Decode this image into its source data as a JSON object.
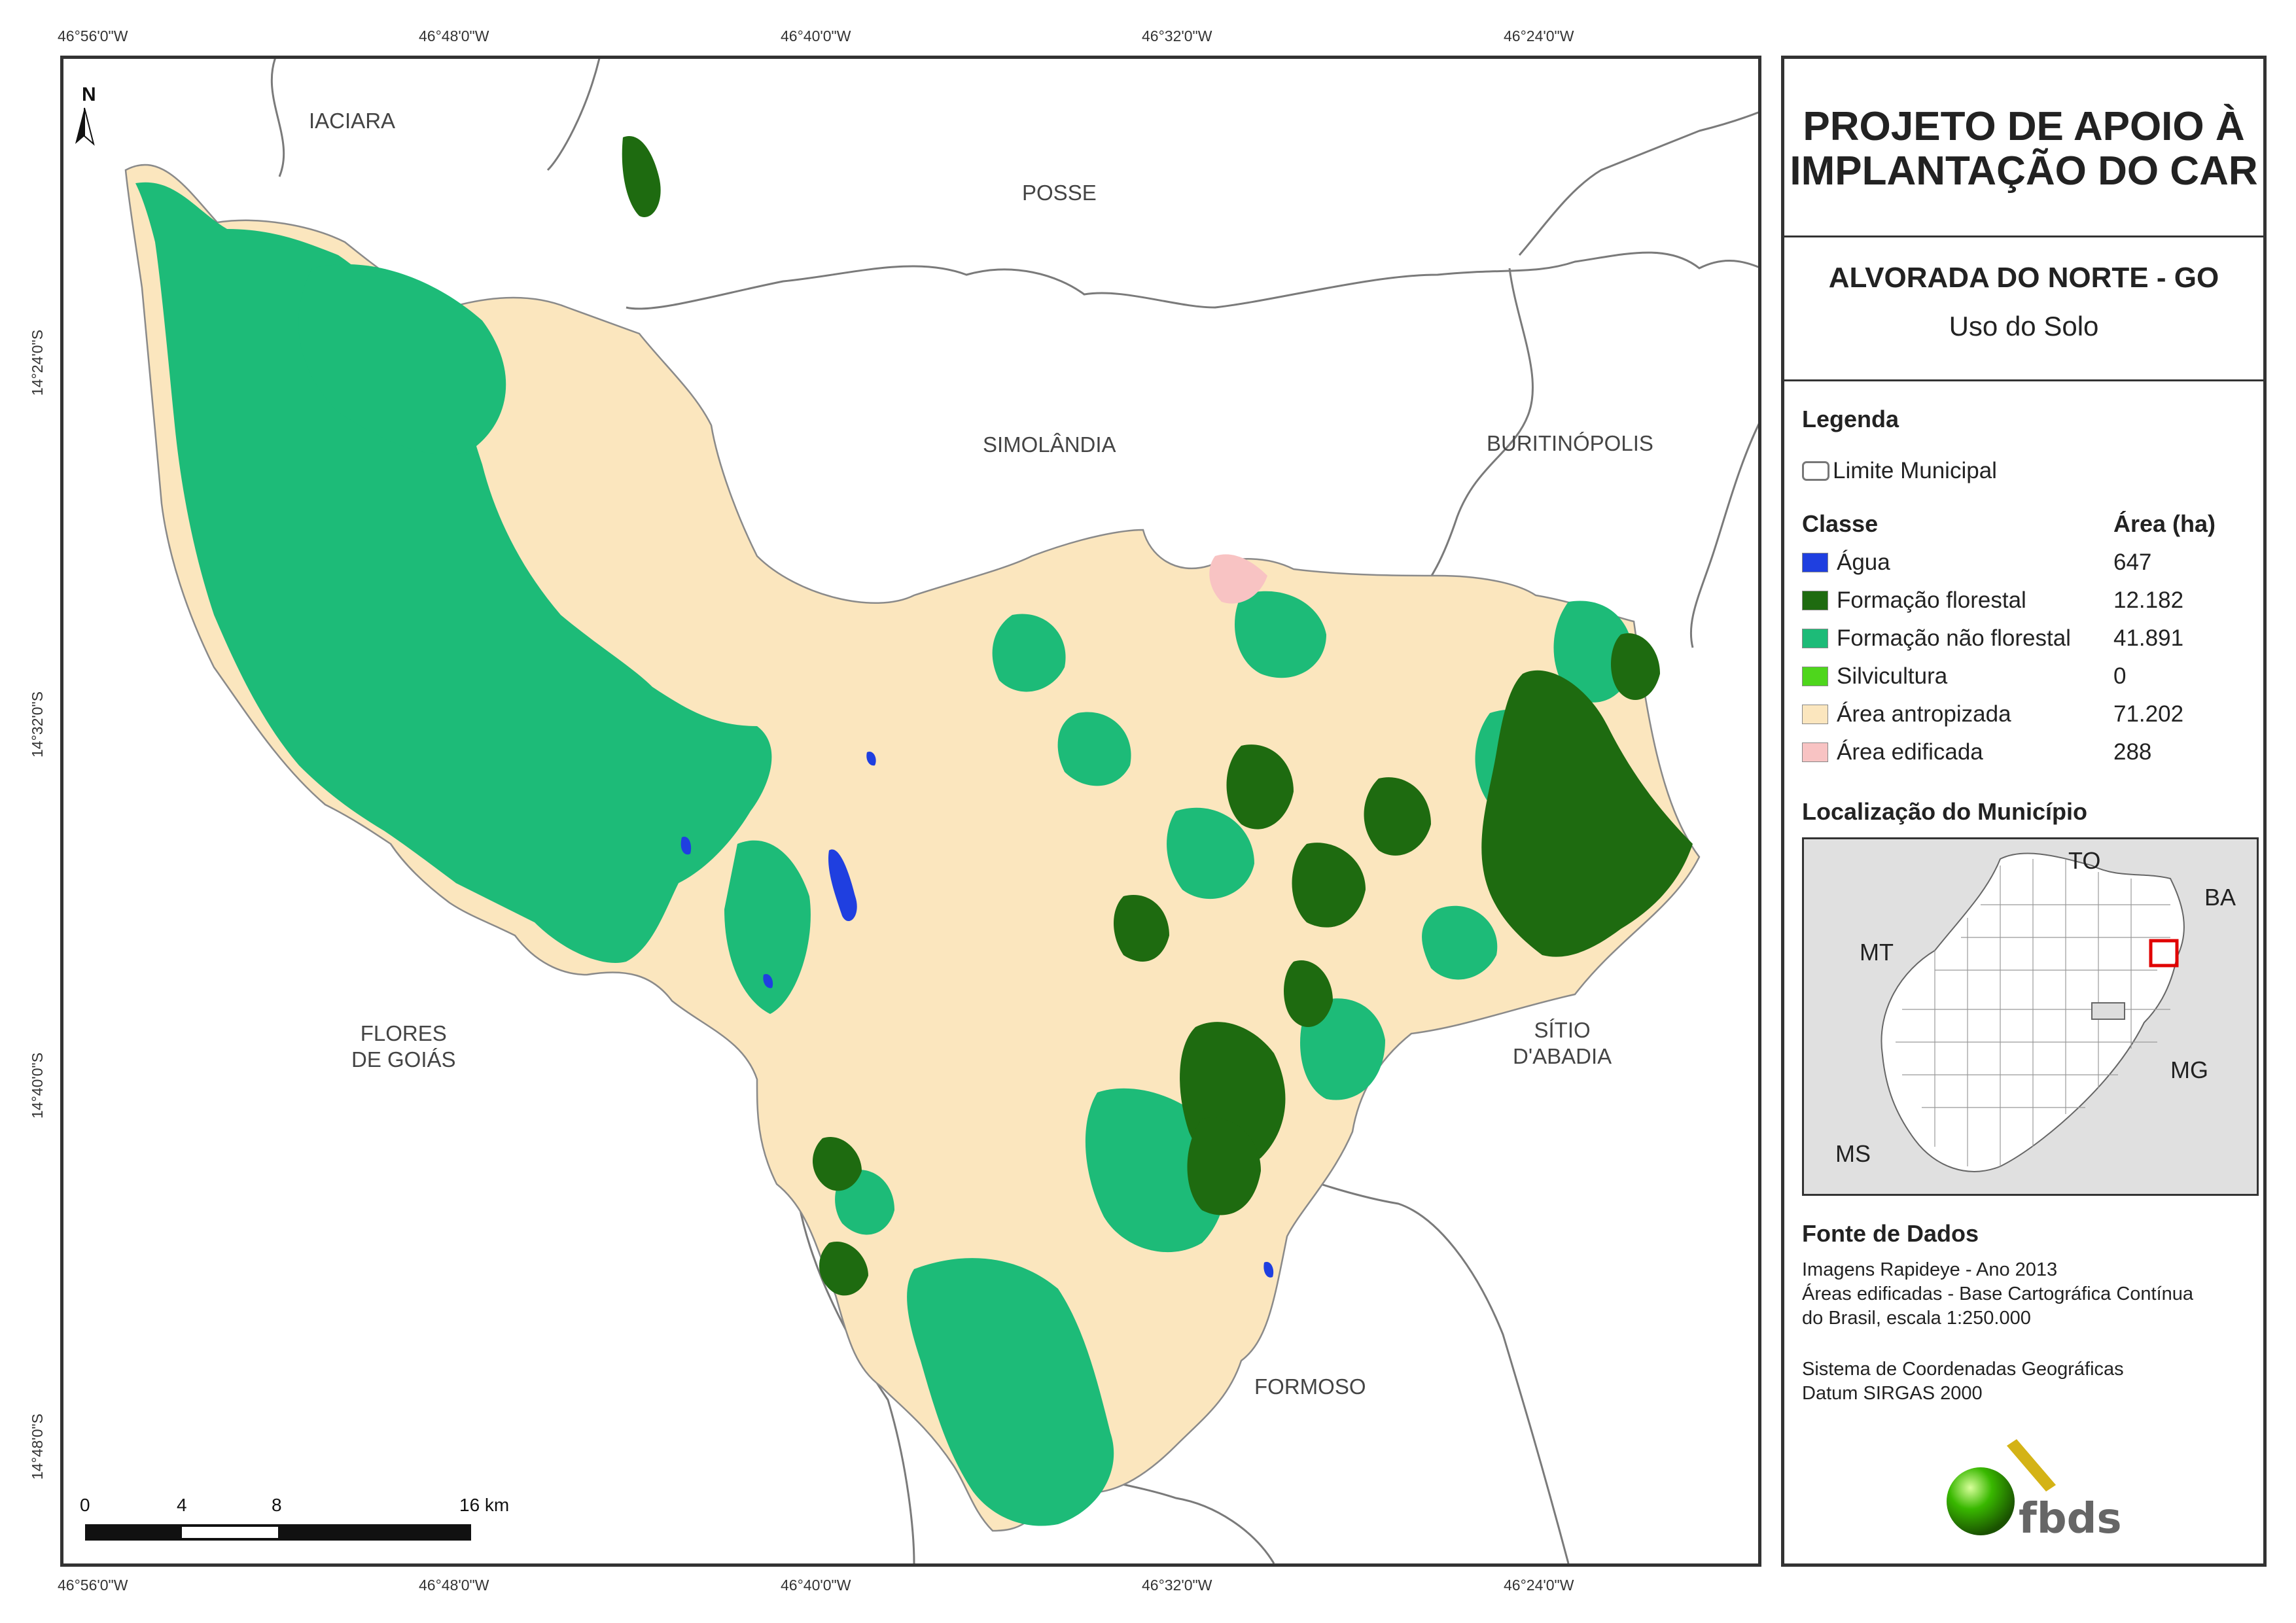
{
  "map": {
    "top_ticks": [
      "46°56'0\"W",
      "46°48'0\"W",
      "46°40'0\"W",
      "46°32'0\"W",
      "46°24'0\"W"
    ],
    "bottom_ticks": [
      "46°56'0\"W",
      "46°48'0\"W",
      "46°40'0\"W",
      "46°32'0\"W",
      "46°24'0\"W"
    ],
    "left_ticks": [
      "14°24'0\"S",
      "14°32'0\"S",
      "14°40'0\"S",
      "14°48'0\"S"
    ],
    "north": "N",
    "municipalities": {
      "iaciara": "IACIARA",
      "posse": "POSSE",
      "simolandia": "SIMOLÂNDIA",
      "buritinopolis": "BURITINÓPOLIS",
      "flores_l1": "FLORES",
      "flores_l2": "DE GOIÁS",
      "sitio_l1": "SÍTIO",
      "sitio_l2": "D'ABADIA",
      "formoso": "FORMOSO"
    },
    "scale": {
      "labels": [
        "0",
        "4",
        "8",
        "16 km"
      ]
    }
  },
  "panel": {
    "project_title_line1": "PROJETO DE APOIO À",
    "project_title_line2": "IMPLANTAÇÃO DO CAR",
    "municipality_title": "ALVORADA DO NORTE - GO",
    "map_subtitle": "Uso do Solo",
    "legend_heading": "Legenda",
    "limit_label": "Limite Municipal",
    "class_heading": "Classe",
    "area_heading": "Área (ha)",
    "classes": [
      {
        "name": "Água",
        "area": "647",
        "color": "#1f3fe0"
      },
      {
        "name": "Formação florestal",
        "area": "12.182",
        "color": "#1e6b10"
      },
      {
        "name": "Formação não florestal",
        "area": "41.891",
        "color": "#1dbb78"
      },
      {
        "name": "Silvicultura",
        "area": "0",
        "color": "#4ed61c"
      },
      {
        "name": "Área antropizada",
        "area": "71.202",
        "color": "#fbe6be"
      },
      {
        "name": "Área edificada",
        "area": "288",
        "color": "#f8c3c3"
      }
    ],
    "location_heading": "Localização do Município",
    "inset_labels": {
      "to": "TO",
      "ba": "BA",
      "mt": "MT",
      "mg": "MG",
      "ms": "MS"
    },
    "sources_heading": "Fonte de Dados",
    "sources": [
      "Imagens Rapideye - Ano 2013",
      "Áreas edificadas - Base Cartográfica Contínua",
      "do Brasil, escala 1:250.000"
    ],
    "crs": [
      "Sistema de Coordenadas Geográficas",
      "Datum SIRGAS 2000"
    ],
    "logo_text": "fbds"
  }
}
